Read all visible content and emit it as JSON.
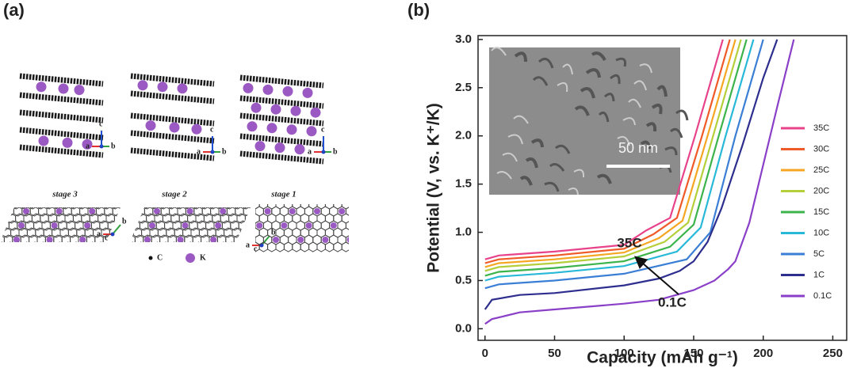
{
  "panel_labels": [
    "(a)",
    "(b)"
  ],
  "diagram": {
    "stages": [
      "stage 3",
      "stage 2",
      "stage 1"
    ],
    "axis_letters": [
      "a",
      "b",
      "c"
    ],
    "atom_legend": [
      "C",
      "K"
    ]
  },
  "chart_data": {
    "type": "line",
    "xlabel": "Capacity (mAh g⁻¹)",
    "ylabel": "Potential (V, vs. K⁺/K)",
    "xlim": [
      -5,
      260
    ],
    "ylim": [
      -0.12,
      3.04
    ],
    "xticks": [
      0,
      50,
      100,
      150,
      200,
      250
    ],
    "yticks": [
      {
        "value": 0,
        "label": "0.0"
      },
      0.5,
      {
        "value": 1,
        "label": "1.0"
      },
      1.5,
      {
        "value": 2,
        "label": "2.0"
      },
      2.5,
      {
        "value": 3,
        "label": "3.0"
      }
    ],
    "legend": "right",
    "annotations": [
      "35C",
      "0.1C"
    ],
    "inset_scale": "50 nm",
    "series": [
      {
        "name": "35C",
        "color": "#e8438a",
        "x": [
          0,
          10,
          50,
          100,
          116,
          133,
          151,
          171
        ],
        "values": [
          0.72,
          0.76,
          0.8,
          0.87,
          1.02,
          1.15,
          2.0,
          3.0
        ]
      },
      {
        "name": "30C",
        "color": "#f05a28",
        "x": [
          0,
          10,
          50,
          100,
          121,
          138,
          156,
          176
        ],
        "values": [
          0.68,
          0.72,
          0.76,
          0.83,
          0.98,
          1.15,
          2.0,
          3.0
        ]
      },
      {
        "name": "25C",
        "color": "#f5a623",
        "x": [
          0,
          10,
          50,
          100,
          125,
          142,
          160,
          180
        ],
        "values": [
          0.64,
          0.68,
          0.72,
          0.79,
          0.94,
          1.12,
          2.0,
          3.0
        ]
      },
      {
        "name": "20C",
        "color": "#b5cf3a",
        "x": [
          0,
          10,
          50,
          100,
          129,
          146,
          164,
          184
        ],
        "values": [
          0.6,
          0.64,
          0.68,
          0.75,
          0.9,
          1.1,
          2.0,
          3.0
        ]
      },
      {
        "name": "15C",
        "color": "#3cb44b",
        "x": [
          0,
          10,
          50,
          100,
          133,
          150,
          168,
          188
        ],
        "values": [
          0.55,
          0.59,
          0.63,
          0.7,
          0.85,
          1.08,
          2.0,
          3.0
        ]
      },
      {
        "name": "10C",
        "color": "#28b8d8",
        "x": [
          0,
          10,
          50,
          100,
          138,
          155,
          173,
          193
        ],
        "values": [
          0.5,
          0.54,
          0.58,
          0.65,
          0.8,
          1.05,
          2.0,
          3.0
        ]
      },
      {
        "name": "5C",
        "color": "#3a7fd5",
        "x": [
          0,
          10,
          50,
          100,
          145,
          162,
          180,
          200
        ],
        "values": [
          0.42,
          0.46,
          0.5,
          0.57,
          0.72,
          1.0,
          2.0,
          3.0
        ]
      },
      {
        "name": "1C",
        "color": "#2e2e8f",
        "x": [
          0,
          5,
          25,
          50,
          100,
          125,
          140,
          150,
          160,
          170,
          185,
          200,
          210
        ],
        "values": [
          0.2,
          0.3,
          0.35,
          0.37,
          0.45,
          0.52,
          0.6,
          0.7,
          0.9,
          1.25,
          1.9,
          2.6,
          3.0
        ]
      },
      {
        "name": "0.1C",
        "color": "#8a3fc8",
        "x": [
          0,
          5,
          25,
          50,
          100,
          125,
          150,
          165,
          175,
          180,
          190,
          200,
          210,
          222
        ],
        "values": [
          0.05,
          0.1,
          0.17,
          0.2,
          0.26,
          0.3,
          0.4,
          0.5,
          0.62,
          0.7,
          1.1,
          1.7,
          2.3,
          3.0
        ]
      }
    ]
  }
}
